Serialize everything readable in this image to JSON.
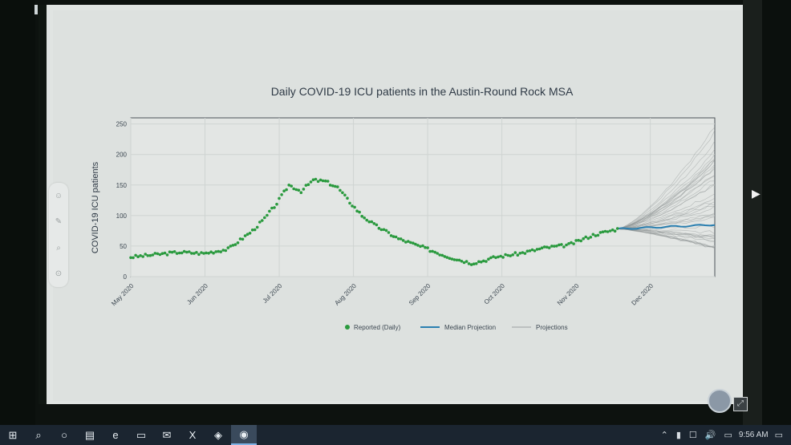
{
  "chart": {
    "title": "Daily COVID-19 ICU patients in the Austin-Round Rock MSA",
    "ylabel": "COVID-19 ICU patients",
    "legend": {
      "reported": "Reported (Daily)",
      "median": "Median Projection",
      "projections": "Projections"
    },
    "colors": {
      "reported": "#2a9a3e",
      "median": "#2a7fb0",
      "projections": "#8f9696"
    }
  },
  "chart_data": {
    "type": "scatter",
    "title": "Daily COVID-19 ICU patients in the Austin-Round Rock MSA",
    "xlabel": "",
    "ylabel": "COVID-19 ICU patients",
    "x_ticks": [
      "May 2020",
      "Jun 2020",
      "Jul 2020",
      "Aug 2020",
      "Sep 2020",
      "Oct 2020",
      "Nov 2020",
      "Dec 2020"
    ],
    "y_ticks": [
      0,
      50,
      100,
      150,
      200,
      250
    ],
    "ylim": [
      0,
      260
    ],
    "grid": true,
    "legend_position": "bottom",
    "series": [
      {
        "name": "Reported (Daily)",
        "kind": "points",
        "key_days": [
          0,
          10,
          20,
          30,
          40,
          50,
          55,
          60,
          65,
          70,
          75,
          80,
          85,
          90,
          95,
          100,
          110,
          120,
          130,
          140,
          145,
          150,
          160,
          170,
          180,
          190,
          200
        ],
        "key_values": [
          32,
          36,
          40,
          38,
          45,
          75,
          95,
          120,
          150,
          140,
          158,
          156,
          146,
          122,
          100,
          85,
          62,
          48,
          33,
          22,
          26,
          32,
          38,
          47,
          52,
          68,
          78
        ]
      },
      {
        "name": "Median Projection",
        "kind": "line",
        "start_day": 200,
        "start_value": 78,
        "end_day": 240,
        "end_value": 85
      },
      {
        "name": "Projections",
        "kind": "band",
        "start_day": 200,
        "end_day": 240,
        "end_min": 45,
        "end_max": 260
      }
    ]
  },
  "taskbar": {
    "icons": [
      "windows-icon",
      "search-icon",
      "cortana-icon",
      "task-view-icon",
      "edge-icon",
      "file-explorer-icon",
      "mail-icon",
      "excel-icon",
      "teams-icon",
      "active-app-icon"
    ],
    "glyphs": [
      "⊞",
      "⌕",
      "○",
      "▤",
      "e",
      "▭",
      "✉",
      "X",
      "◈",
      "◉"
    ],
    "tray_glyphs": [
      "⌃",
      "▮",
      "☐",
      "🔊",
      "▭"
    ],
    "clock": "9:56 AM"
  }
}
